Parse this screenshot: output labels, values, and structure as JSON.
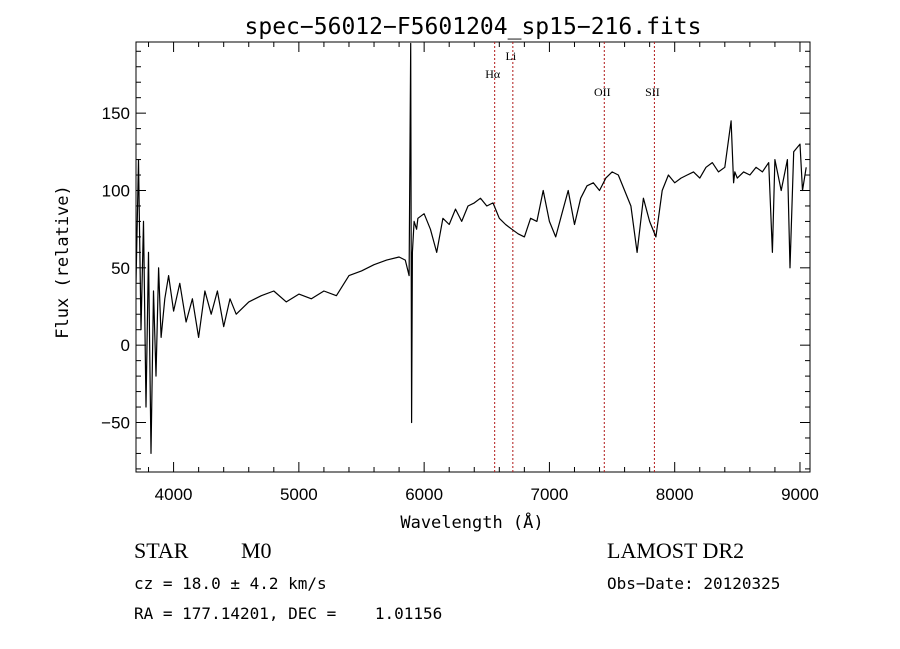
{
  "chart_data": {
    "type": "line",
    "title": "spec−56012−F5601204_sp15−216.fits",
    "xlabel": "Wavelength (Å)",
    "ylabel": "Flux (relative)",
    "xlim": [
      3700,
      9080
    ],
    "ylim": [
      -82,
      196
    ],
    "xticks": [
      4000,
      5000,
      6000,
      7000,
      8000,
      9000
    ],
    "yticks": [
      -50,
      0,
      50,
      100,
      150
    ],
    "grid": false,
    "lines": [
      {
        "label": "Hα",
        "x": 6563
      },
      {
        "label": "Li",
        "x": 6708
      },
      {
        "label": "OII",
        "x": 7438
      },
      {
        "label": "SII",
        "x": 7838
      }
    ],
    "series": [
      {
        "x": [
          3700,
          3720,
          3740,
          3760,
          3780,
          3800,
          3820,
          3840,
          3860,
          3880,
          3900,
          3930,
          3960,
          4000,
          4050,
          4100,
          4150,
          4200,
          4250,
          4300,
          4350,
          4400,
          4450,
          4500,
          4600,
          4700,
          4800,
          4900,
          5000,
          5100,
          5200,
          5300,
          5400,
          5500,
          5600,
          5700,
          5800,
          5850,
          5880,
          5893,
          5900,
          5906,
          5920,
          5940,
          5950,
          6000,
          6050,
          6100,
          6150,
          6200,
          6250,
          6300,
          6350,
          6400,
          6450,
          6500,
          6550,
          6600,
          6650,
          6700,
          6750,
          6800,
          6850,
          6900,
          6950,
          7000,
          7050,
          7100,
          7150,
          7200,
          7250,
          7300,
          7350,
          7400,
          7450,
          7500,
          7550,
          7600,
          7650,
          7700,
          7750,
          7800,
          7850,
          7900,
          7950,
          8000,
          8050,
          8100,
          8150,
          8200,
          8250,
          8300,
          8350,
          8400,
          8450,
          8470,
          8480,
          8500,
          8550,
          8600,
          8650,
          8700,
          8750,
          8780,
          8800,
          8850,
          8900,
          8920,
          8950,
          9000,
          9020,
          9050
        ],
        "y": [
          40,
          120,
          10,
          80,
          -40,
          60,
          -70,
          35,
          -20,
          50,
          5,
          30,
          45,
          22,
          40,
          15,
          30,
          5,
          35,
          20,
          35,
          12,
          30,
          20,
          28,
          32,
          35,
          28,
          33,
          30,
          35,
          32,
          45,
          48,
          52,
          55,
          57,
          55,
          45,
          195,
          -50,
          60,
          80,
          75,
          82,
          85,
          75,
          60,
          82,
          78,
          88,
          80,
          90,
          92,
          95,
          90,
          92,
          82,
          78,
          75,
          72,
          70,
          82,
          80,
          100,
          80,
          70,
          85,
          100,
          78,
          95,
          103,
          105,
          100,
          108,
          112,
          110,
          100,
          90,
          60,
          95,
          80,
          70,
          100,
          110,
          105,
          108,
          110,
          112,
          108,
          115,
          118,
          112,
          115,
          145,
          105,
          112,
          108,
          112,
          110,
          115,
          112,
          118,
          60,
          120,
          100,
          120,
          50,
          125,
          130,
          100,
          115
        ]
      }
    ]
  },
  "info": {
    "object_class": "STAR",
    "subclass": "M0",
    "survey": "LAMOST DR2",
    "cz": "cz = 18.0 ± 4.2 km/s",
    "obs_date": "Obs−Date: 20120325",
    "radec": "RA = 177.14201, DEC =    1.01156"
  }
}
